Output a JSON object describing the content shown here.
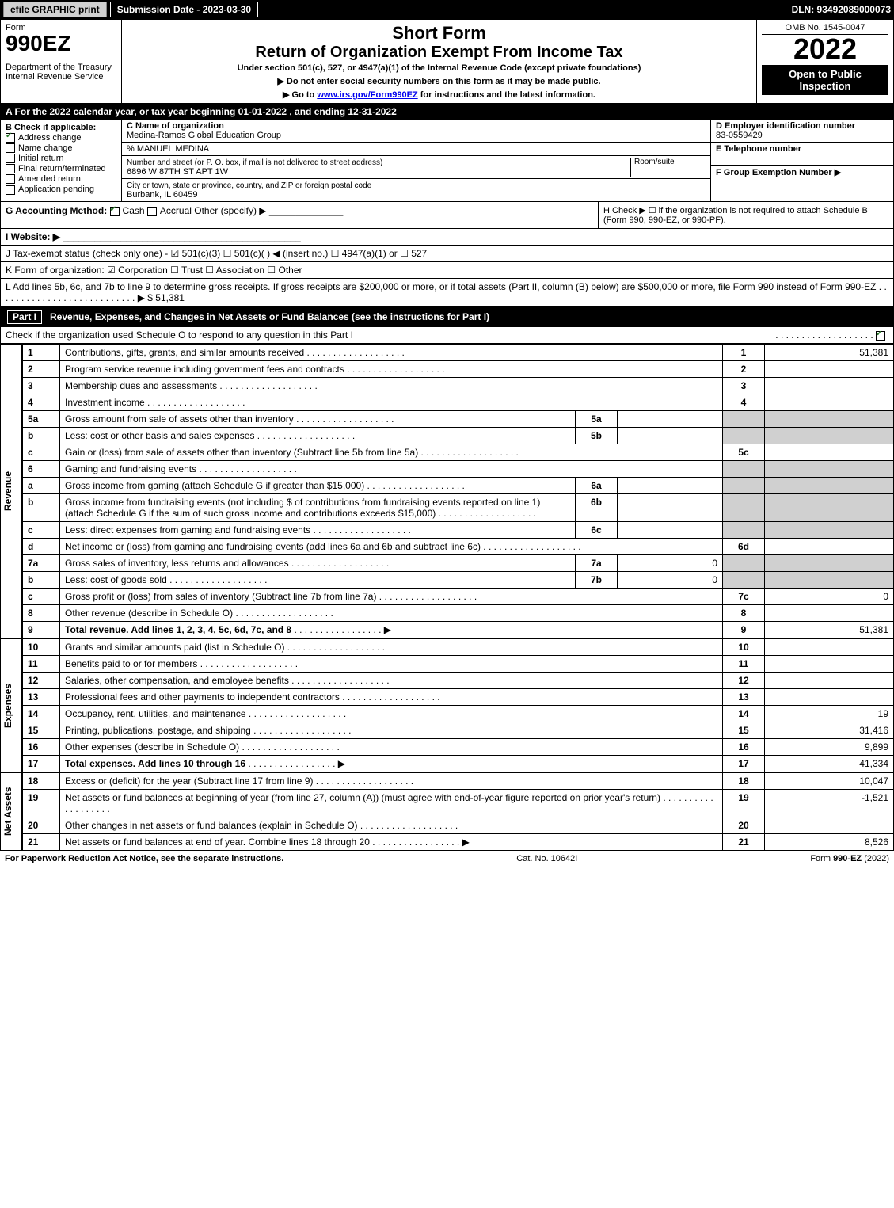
{
  "top_bar": {
    "efile": "efile GRAPHIC print",
    "submission": "Submission Date - 2023-03-30",
    "dln": "DLN: 93492089000073"
  },
  "header": {
    "form_word": "Form",
    "form_number": "990EZ",
    "dept1": "Department of the Treasury",
    "dept2": "Internal Revenue Service",
    "title1": "Short Form",
    "title2": "Return of Organization Exempt From Income Tax",
    "subtitle": "Under section 501(c), 527, or 4947(a)(1) of the Internal Revenue Code (except private foundations)",
    "note1": "▶ Do not enter social security numbers on this form as it may be made public.",
    "note2_pre": "▶ Go to ",
    "note2_link": "www.irs.gov/Form990EZ",
    "note2_post": " for instructions and the latest information.",
    "omb": "OMB No. 1545-0047",
    "year": "2022",
    "open": "Open to Public Inspection"
  },
  "line_a": "A  For the 2022 calendar year, or tax year beginning 01-01-2022 , and ending 12-31-2022",
  "box_b": {
    "label": "B  Check if applicable:",
    "items": [
      {
        "label": "Address change",
        "checked": true
      },
      {
        "label": "Name change",
        "checked": false
      },
      {
        "label": "Initial return",
        "checked": false
      },
      {
        "label": "Final return/terminated",
        "checked": false
      },
      {
        "label": "Amended return",
        "checked": false
      },
      {
        "label": "Application pending",
        "checked": false
      }
    ]
  },
  "box_c": {
    "name_label": "C Name of organization",
    "name": "Medina-Ramos Global Education Group",
    "care_of": "% MANUEL MEDINA",
    "street_label": "Number and street (or P. O. box, if mail is not delivered to street address)",
    "room_label": "Room/suite",
    "street": "6896 W 87TH ST APT 1W",
    "city_label": "City or town, state or province, country, and ZIP or foreign postal code",
    "city": "Burbank, IL  60459"
  },
  "box_d": {
    "label": "D Employer identification number",
    "value": "83-0559429",
    "e_label": "E Telephone number",
    "f_label": "F Group Exemption Number  ▶"
  },
  "line_g": {
    "prefix": "G Accounting Method:",
    "cash": "Cash",
    "accrual": "Accrual",
    "other": "Other (specify) ▶"
  },
  "line_h": "H  Check ▶  ☐  if the organization is not required to attach Schedule B (Form 990, 990-EZ, or 990-PF).",
  "line_i": "I Website: ▶",
  "line_j": "J Tax-exempt status (check only one) - ☑ 501(c)(3)  ☐ 501(c)(  ) ◀ (insert no.)  ☐ 4947(a)(1) or  ☐ 527",
  "line_k": "K Form of organization:  ☑ Corporation  ☐ Trust  ☐ Association  ☐ Other",
  "line_l": {
    "text": "L Add lines 5b, 6c, and 7b to line 9 to determine gross receipts. If gross receipts are $200,000 or more, or if total assets (Part II, column (B) below) are $500,000 or more, file Form 990 instead of Form 990-EZ",
    "amount": "▶ $ 51,381"
  },
  "part1": {
    "label": "Part I",
    "title": "Revenue, Expenses, and Changes in Net Assets or Fund Balances (see the instructions for Part I)",
    "check_text": "Check if the organization used Schedule O to respond to any question in this Part I",
    "checked": true
  },
  "revenue": {
    "label": "Revenue",
    "rows": [
      {
        "n": "1",
        "d": "Contributions, gifts, grants, and similar amounts received",
        "rn": "1",
        "rv": "51,381"
      },
      {
        "n": "2",
        "d": "Program service revenue including government fees and contracts",
        "rn": "2",
        "rv": ""
      },
      {
        "n": "3",
        "d": "Membership dues and assessments",
        "rn": "3",
        "rv": ""
      },
      {
        "n": "4",
        "d": "Investment income",
        "rn": "4",
        "rv": ""
      },
      {
        "n": "5a",
        "d": "Gross amount from sale of assets other than inventory",
        "sn": "5a",
        "sv": "",
        "rn": "",
        "rv": "",
        "shade": true
      },
      {
        "n": "b",
        "d": "Less: cost or other basis and sales expenses",
        "sn": "5b",
        "sv": "",
        "rn": "",
        "rv": "",
        "shade": true
      },
      {
        "n": "c",
        "d": "Gain or (loss) from sale of assets other than inventory (Subtract line 5b from line 5a)",
        "rn": "5c",
        "rv": ""
      },
      {
        "n": "6",
        "d": "Gaming and fundraising events",
        "rn": "",
        "rv": "",
        "shade": true,
        "noright": true
      },
      {
        "n": "a",
        "d": "Gross income from gaming (attach Schedule G if greater than $15,000)",
        "sn": "6a",
        "sv": "",
        "rn": "",
        "rv": "",
        "shade": true
      },
      {
        "n": "b",
        "d": "Gross income from fundraising events (not including $                  of contributions from fundraising events reported on line 1) (attach Schedule G if the sum of such gross income and contributions exceeds $15,000)",
        "sn": "6b",
        "sv": "",
        "rn": "",
        "rv": "",
        "shade": true
      },
      {
        "n": "c",
        "d": "Less: direct expenses from gaming and fundraising events",
        "sn": "6c",
        "sv": "",
        "rn": "",
        "rv": "",
        "shade": true
      },
      {
        "n": "d",
        "d": "Net income or (loss) from gaming and fundraising events (add lines 6a and 6b and subtract line 6c)",
        "rn": "6d",
        "rv": ""
      },
      {
        "n": "7a",
        "d": "Gross sales of inventory, less returns and allowances",
        "sn": "7a",
        "sv": "0",
        "rn": "",
        "rv": "",
        "shade": true
      },
      {
        "n": "b",
        "d": "Less: cost of goods sold",
        "sn": "7b",
        "sv": "0",
        "rn": "",
        "rv": "",
        "shade": true
      },
      {
        "n": "c",
        "d": "Gross profit or (loss) from sales of inventory (Subtract line 7b from line 7a)",
        "rn": "7c",
        "rv": "0"
      },
      {
        "n": "8",
        "d": "Other revenue (describe in Schedule O)",
        "rn": "8",
        "rv": ""
      },
      {
        "n": "9",
        "d": "Total revenue. Add lines 1, 2, 3, 4, 5c, 6d, 7c, and 8",
        "rn": "9",
        "rv": "51,381",
        "bold": true,
        "arrow": true
      }
    ]
  },
  "expenses": {
    "label": "Expenses",
    "rows": [
      {
        "n": "10",
        "d": "Grants and similar amounts paid (list in Schedule O)",
        "rn": "10",
        "rv": ""
      },
      {
        "n": "11",
        "d": "Benefits paid to or for members",
        "rn": "11",
        "rv": ""
      },
      {
        "n": "12",
        "d": "Salaries, other compensation, and employee benefits",
        "rn": "12",
        "rv": ""
      },
      {
        "n": "13",
        "d": "Professional fees and other payments to independent contractors",
        "rn": "13",
        "rv": ""
      },
      {
        "n": "14",
        "d": "Occupancy, rent, utilities, and maintenance",
        "rn": "14",
        "rv": "19"
      },
      {
        "n": "15",
        "d": "Printing, publications, postage, and shipping",
        "rn": "15",
        "rv": "31,416"
      },
      {
        "n": "16",
        "d": "Other expenses (describe in Schedule O)",
        "rn": "16",
        "rv": "9,899"
      },
      {
        "n": "17",
        "d": "Total expenses. Add lines 10 through 16",
        "rn": "17",
        "rv": "41,334",
        "bold": true,
        "arrow": true
      }
    ]
  },
  "netassets": {
    "label": "Net Assets",
    "rows": [
      {
        "n": "18",
        "d": "Excess or (deficit) for the year (Subtract line 17 from line 9)",
        "rn": "18",
        "rv": "10,047"
      },
      {
        "n": "19",
        "d": "Net assets or fund balances at beginning of year (from line 27, column (A)) (must agree with end-of-year figure reported on prior year's return)",
        "rn": "19",
        "rv": "-1,521"
      },
      {
        "n": "20",
        "d": "Other changes in net assets or fund balances (explain in Schedule O)",
        "rn": "20",
        "rv": ""
      },
      {
        "n": "21",
        "d": "Net assets or fund balances at end of year. Combine lines 18 through 20",
        "rn": "21",
        "rv": "8,526",
        "arrow": true
      }
    ]
  },
  "footer": {
    "left": "For Paperwork Reduction Act Notice, see the separate instructions.",
    "mid": "Cat. No. 10642I",
    "right": "Form 990-EZ (2022)"
  },
  "colors": {
    "black": "#000000",
    "white": "#ffffff",
    "shade": "#d0d0d0",
    "check": "#2b7a2b"
  }
}
